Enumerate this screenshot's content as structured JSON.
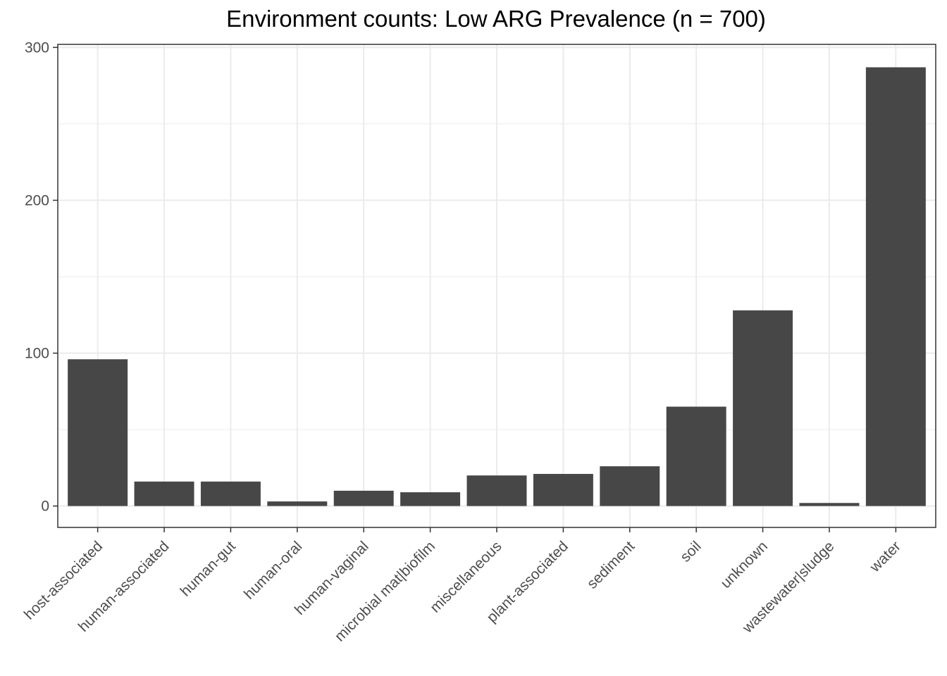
{
  "chart_data": {
    "type": "bar",
    "title": "Environment counts: Low ARG Prevalence (n = 700)",
    "xlabel": "",
    "ylabel": "",
    "categories": [
      "host-associated",
      "human-associated",
      "human-gut",
      "human-oral",
      "human-vaginal",
      "microbial mat|biofilm",
      "miscellaneous",
      "plant-associated",
      "sediment",
      "soil",
      "unknown",
      "wastewater|sludge",
      "water"
    ],
    "values": [
      96,
      16,
      16,
      3,
      10,
      9,
      20,
      21,
      26,
      65,
      128,
      2,
      287
    ],
    "ylim": [
      -14,
      302
    ],
    "yticks": [
      0,
      100,
      200,
      300
    ],
    "grid": true,
    "bar_color": "#474747",
    "panel_border_color": "#333333",
    "grid_color": "#ebebeb"
  }
}
